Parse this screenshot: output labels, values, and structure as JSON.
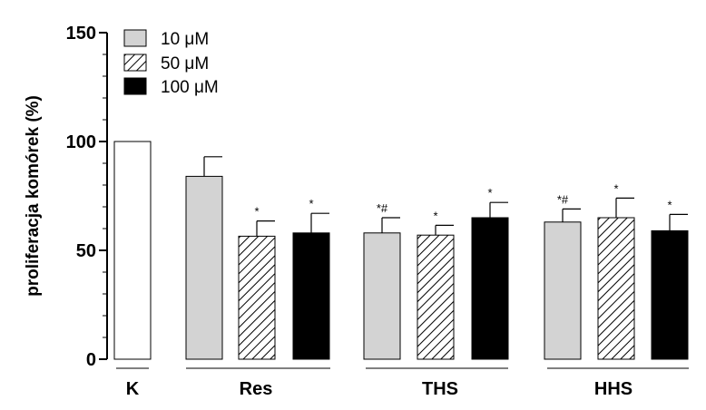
{
  "chart_data": {
    "type": "bar",
    "ylabel": "proliferacja komórek (%)",
    "xlabel": "",
    "ylim": [
      0,
      150
    ],
    "yticks": [
      0,
      50,
      100,
      150
    ],
    "grid": false,
    "legend": {
      "placement": "top-left",
      "entries": [
        {
          "label": "10 μM",
          "style": "gray"
        },
        {
          "label": "50 μM",
          "style": "hatched"
        },
        {
          "label": "100 μM",
          "style": "black"
        }
      ]
    },
    "groups": [
      {
        "label": "K",
        "bars": [
          {
            "series": "control",
            "value": 100,
            "error": 0,
            "sig": ""
          }
        ]
      },
      {
        "label": "Res",
        "bars": [
          {
            "series": "10 μM",
            "value": 84,
            "error": 9,
            "sig": ""
          },
          {
            "series": "50 μM",
            "value": 56.5,
            "error": 7,
            "sig": "*"
          },
          {
            "series": "100 μM",
            "value": 58,
            "error": 9,
            "sig": "*"
          }
        ]
      },
      {
        "label": "THS",
        "bars": [
          {
            "series": "10 μM",
            "value": 58,
            "error": 7,
            "sig": "*#"
          },
          {
            "series": "50 μM",
            "value": 57,
            "error": 4.5,
            "sig": "*"
          },
          {
            "series": "100 μM",
            "value": 65,
            "error": 7,
            "sig": "*"
          }
        ]
      },
      {
        "label": "HHS",
        "bars": [
          {
            "series": "10 μM",
            "value": 63,
            "error": 6,
            "sig": "*#"
          },
          {
            "series": "50 μM",
            "value": 65,
            "error": 9,
            "sig": "*"
          },
          {
            "series": "100 μM",
            "value": 59,
            "error": 7.5,
            "sig": "*"
          }
        ]
      }
    ],
    "colors": {
      "control": "#ffffff",
      "gray": "#d3d3d3",
      "hatched": "#ffffff",
      "black": "#000000",
      "axis": "#000000"
    }
  }
}
